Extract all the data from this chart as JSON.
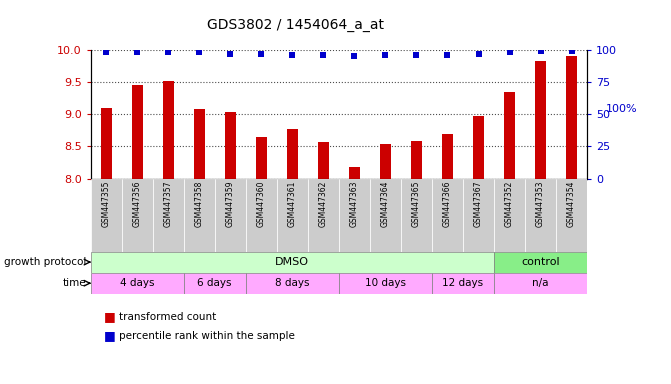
{
  "title": "GDS3802 / 1454064_a_at",
  "samples": [
    "GSM447355",
    "GSM447356",
    "GSM447357",
    "GSM447358",
    "GSM447359",
    "GSM447360",
    "GSM447361",
    "GSM447362",
    "GSM447363",
    "GSM447364",
    "GSM447365",
    "GSM447366",
    "GSM447367",
    "GSM447352",
    "GSM447353",
    "GSM447354"
  ],
  "bar_values": [
    9.1,
    9.45,
    9.52,
    9.08,
    9.03,
    8.65,
    8.77,
    8.57,
    8.18,
    8.53,
    8.58,
    8.7,
    8.97,
    9.35,
    9.82,
    9.9
  ],
  "percentile_values": [
    98,
    98,
    98,
    98,
    97,
    97,
    96,
    96,
    95,
    96,
    96,
    96,
    97,
    98,
    99,
    99
  ],
  "ylim_left": [
    8.0,
    10.0
  ],
  "ylim_right": [
    0,
    100
  ],
  "yticks_left": [
    8.0,
    8.5,
    9.0,
    9.5,
    10.0
  ],
  "yticks_right": [
    0,
    25,
    50,
    75,
    100
  ],
  "bar_color": "#cc0000",
  "dot_color": "#0000cc",
  "bar_width": 0.35,
  "left_color": "#cc0000",
  "right_color": "#0000cc",
  "dmso_color": "#ccffcc",
  "control_color": "#88ee88",
  "time_color": "#ffaaff",
  "sample_bg_color": "#cccccc",
  "grid_color": "#000000",
  "time_boundaries": [
    0,
    3,
    5,
    8,
    11,
    13,
    16
  ],
  "time_labels": [
    "4 days",
    "6 days",
    "8 days",
    "10 days",
    "12 days",
    "n/a"
  ]
}
